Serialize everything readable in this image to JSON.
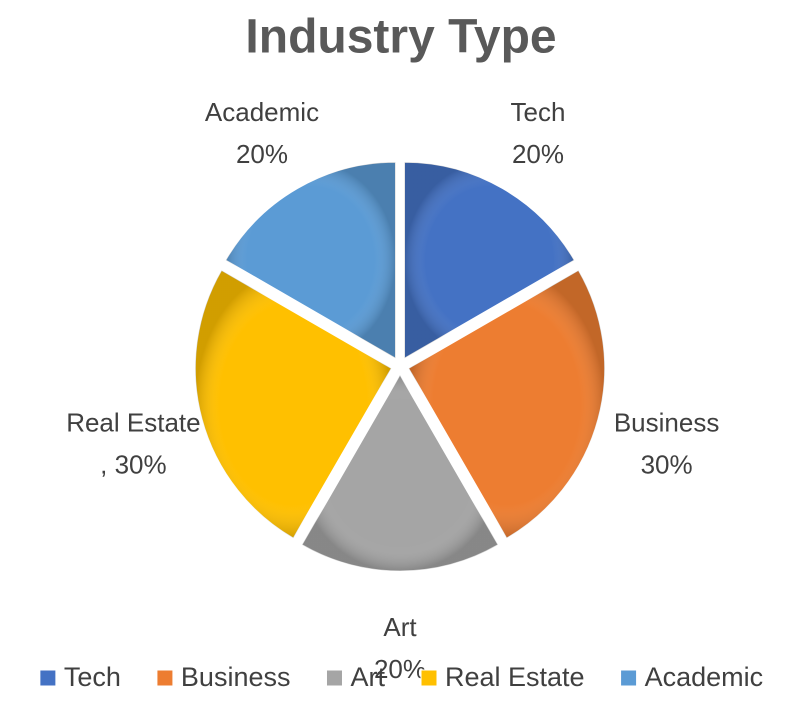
{
  "chart_data": {
    "type": "pie",
    "title": "Industry Type",
    "categories": [
      "Tech",
      "Business",
      "Art",
      "Real Estate",
      "Academic"
    ],
    "values": [
      20,
      30,
      20,
      30,
      20
    ],
    "value_labels": [
      "20%",
      "30%",
      "20%",
      ", 30%",
      "20%"
    ],
    "colors": [
      "#4472c4",
      "#ed7d31",
      "#a5a5a5",
      "#ffc000",
      "#5b9bd5"
    ],
    "legend": "bottom"
  }
}
